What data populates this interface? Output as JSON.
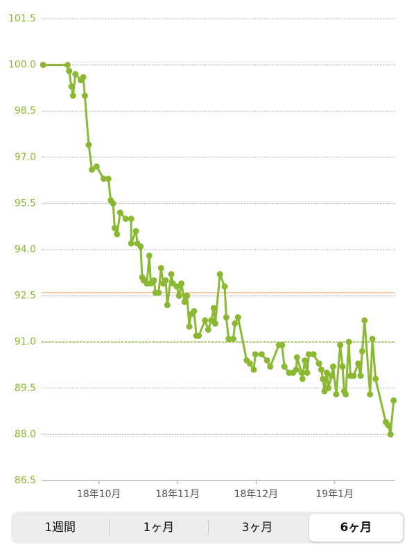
{
  "chart_data": {
    "type": "line",
    "color": "#8ab832",
    "markers": true,
    "grid": true,
    "ylim": [
      86.5,
      101.5
    ],
    "yticks": [
      {
        "value": 86.5,
        "label": "86.5"
      },
      {
        "value": 88,
        "label": "88.0"
      },
      {
        "value": 89.5,
        "label": "89.5"
      },
      {
        "value": 91,
        "label": "91.0"
      },
      {
        "value": 92.5,
        "label": "92.5"
      },
      {
        "value": 94,
        "label": "94.0"
      },
      {
        "value": 95.5,
        "label": "95.5"
      },
      {
        "value": 97,
        "label": "97.0"
      },
      {
        "value": 98.5,
        "label": "98.5"
      },
      {
        "value": 100,
        "label": "100.0"
      },
      {
        "value": 101.5,
        "label": "101.5"
      }
    ],
    "xlim": [
      9.27,
      13.77
    ],
    "xticks": [
      {
        "value": 10,
        "label": "18年10月"
      },
      {
        "value": 11,
        "label": "18年11月"
      },
      {
        "value": 12,
        "label": "18年12月"
      },
      {
        "value": 13,
        "label": "19年1月"
      }
    ],
    "reference_lines": [
      {
        "value": 92.6,
        "color": "#f2b48a",
        "style": "solid"
      },
      {
        "value": 91.0,
        "color": "#8ab832",
        "style": "dashed"
      }
    ],
    "x": [
      9.29,
      9.6,
      9.62,
      9.65,
      9.67,
      9.7,
      9.77,
      9.8,
      9.82,
      9.87,
      9.91,
      9.97,
      10.06,
      10.12,
      10.15,
      10.18,
      10.2,
      10.23,
      10.27,
      10.34,
      10.41,
      10.41,
      10.47,
      10.49,
      10.53,
      10.55,
      10.57,
      10.61,
      10.64,
      10.66,
      10.7,
      10.72,
      10.76,
      10.79,
      10.82,
      10.85,
      10.87,
      10.92,
      10.94,
      10.99,
      11.02,
      11.05,
      11.09,
      11.12,
      11.15,
      11.17,
      11.21,
      11.24,
      11.27,
      11.35,
      11.39,
      11.43,
      11.46,
      11.48,
      11.54,
      11.6,
      11.62,
      11.65,
      11.71,
      11.73,
      11.77,
      11.88,
      11.92,
      11.97,
      11.99,
      12.07,
      12.14,
      12.18,
      12.29,
      12.33,
      12.36,
      12.42,
      12.47,
      12.51,
      12.52,
      12.58,
      12.59,
      12.62,
      12.65,
      12.67,
      12.73,
      12.8,
      12.83,
      12.85,
      12.87,
      12.9,
      12.92,
      12.96,
      12.98,
      13.02,
      13.07,
      13.1,
      13.12,
      13.14,
      13.18,
      13.2,
      13.24,
      13.3,
      13.33,
      13.35,
      13.38,
      13.45,
      13.48,
      13.52,
      13.65,
      13.68,
      13.71,
      13.75
    ],
    "values": [
      100.0,
      100.0,
      99.8,
      99.3,
      99.0,
      99.7,
      99.5,
      99.6,
      99.0,
      97.4,
      96.6,
      96.7,
      96.3,
      96.3,
      95.6,
      95.5,
      94.7,
      94.5,
      95.2,
      95.0,
      95.0,
      94.2,
      94.6,
      94.2,
      94.1,
      93.1,
      93.0,
      92.9,
      93.8,
      92.9,
      93.0,
      92.6,
      92.6,
      93.4,
      92.9,
      93.0,
      92.2,
      93.2,
      92.9,
      92.8,
      92.5,
      92.9,
      92.3,
      92.5,
      91.5,
      91.9,
      92.0,
      91.2,
      91.2,
      91.7,
      91.4,
      91.7,
      92.1,
      91.6,
      93.2,
      92.8,
      91.8,
      91.1,
      91.1,
      91.6,
      91.8,
      90.4,
      90.3,
      90.1,
      90.6,
      90.6,
      90.4,
      90.2,
      90.9,
      90.9,
      90.2,
      90.0,
      90.0,
      90.1,
      90.5,
      90.0,
      89.8,
      90.4,
      90.0,
      90.6,
      90.6,
      90.3,
      90.1,
      89.8,
      89.4,
      90.0,
      89.5,
      89.9,
      90.2,
      89.3,
      90.9,
      90.2,
      89.4,
      89.3,
      91.0,
      89.9,
      89.9,
      90.3,
      89.9,
      90.7,
      91.7,
      89.3,
      91.1,
      89.8,
      88.4,
      88.3,
      88.0,
      89.1
    ]
  },
  "segments": [
    "1週間",
    "1ヶ月",
    "3ヶ月",
    "6ヶ月"
  ],
  "selected": 3
}
